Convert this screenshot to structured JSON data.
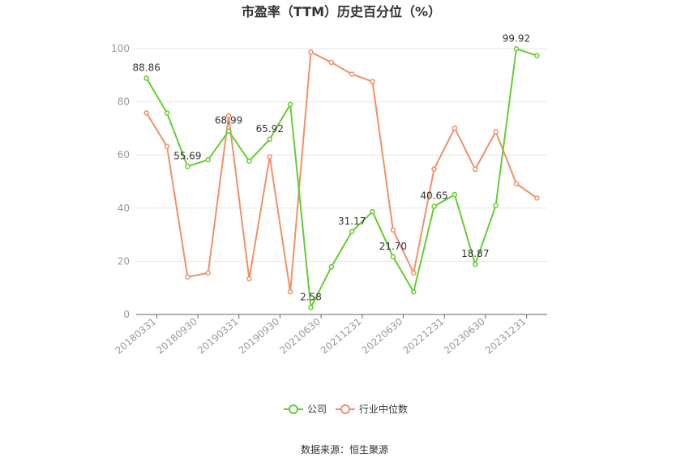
{
  "chart_data": {
    "type": "line",
    "title": "市盈率（TTM）历史百分位（%）",
    "source": "数据来源：恒生聚源",
    "ylim": [
      0,
      100
    ],
    "yticks": [
      0,
      20,
      40,
      60,
      80,
      100
    ],
    "grid": true,
    "legend_position": "bottom",
    "x_tick_labels": [
      "20180331",
      "20180930",
      "20190331",
      "20190930",
      "20210630",
      "20211231",
      "20220630",
      "20221231",
      "20230630",
      "20231231"
    ],
    "series": [
      {
        "name": "公司",
        "color": "#66cc33",
        "values": [
          88.86,
          75.8,
          55.69,
          58.2,
          68.99,
          57.7,
          65.92,
          79.0,
          2.58,
          17.9,
          31.17,
          38.7,
          21.7,
          8.5,
          40.65,
          45.1,
          18.87,
          41.0,
          99.92,
          97.4
        ],
        "labels": [
          "88.86",
          "",
          "55.69",
          "",
          "68.99",
          "",
          "65.92",
          "",
          "2.58",
          "",
          "31.17",
          "",
          "21.70",
          "",
          "40.65",
          "",
          "18.87",
          "",
          "99.92",
          ""
        ]
      },
      {
        "name": "行业中位数",
        "color": "#f09068",
        "values": [
          75.8,
          63.2,
          14.1,
          15.6,
          74.7,
          13.4,
          59.3,
          8.5,
          98.7,
          94.8,
          90.4,
          87.6,
          31.8,
          15.6,
          54.7,
          70.1,
          54.6,
          68.8,
          49.2,
          43.8
        ]
      }
    ]
  }
}
